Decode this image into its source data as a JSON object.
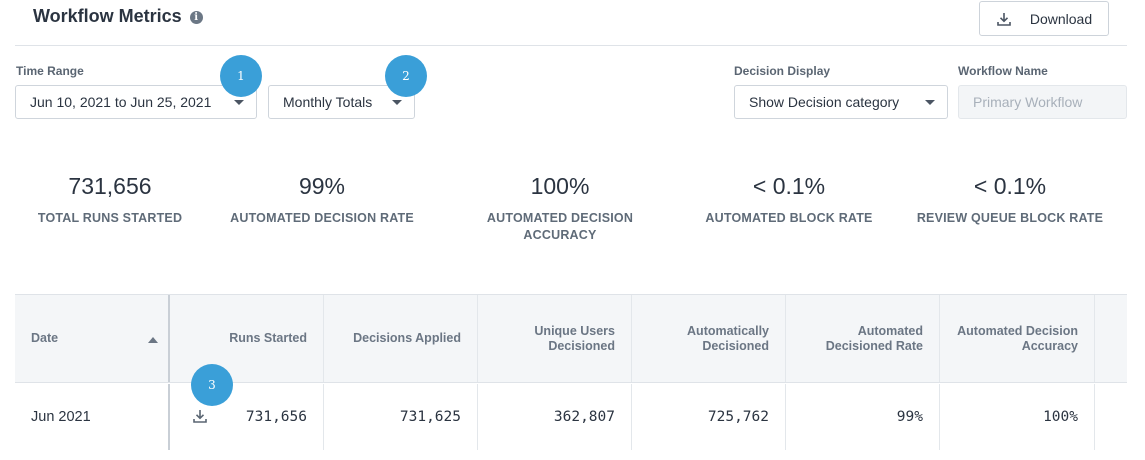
{
  "header": {
    "title": "Workflow Metrics",
    "info_icon": "info-icon",
    "download_label": "Download"
  },
  "filters": {
    "time_range_label": "Time Range",
    "time_range_value": "Jun 10, 2021 to Jun 25, 2021",
    "aggregation_value": "Monthly Totals",
    "decision_display_label": "Decision Display",
    "decision_display_value": "Show Decision category",
    "workflow_name_label": "Workflow Name",
    "workflow_name_placeholder": "Primary Workflow"
  },
  "markers": [
    "1",
    "2",
    "3"
  ],
  "metrics": [
    {
      "value": "731,656",
      "label": "TOTAL RUNS STARTED"
    },
    {
      "value": "99%",
      "label": "AUTOMATED DECISION RATE"
    },
    {
      "value": "100%",
      "label": "AUTOMATED DECISION ACCURACY"
    },
    {
      "value": "< 0.1%",
      "label": "AUTOMATED BLOCK RATE"
    },
    {
      "value": "< 0.1%",
      "label": "REVIEW QUEUE BLOCK RATE"
    }
  ],
  "table": {
    "columns": [
      "Date",
      "Runs Started",
      "Decisions Applied",
      "Unique Users Decisioned",
      "Automatically Decisioned",
      "Automated Decisioned Rate",
      "Automated Decision Accuracy"
    ],
    "rows": [
      [
        "Jun 2021",
        "731,656",
        "731,625",
        "362,807",
        "725,762",
        "99%",
        "100%"
      ]
    ]
  },
  "colors": {
    "accent": "#3a9fd8",
    "header_bg": "#f4f6f8",
    "text": "#2b3441"
  }
}
